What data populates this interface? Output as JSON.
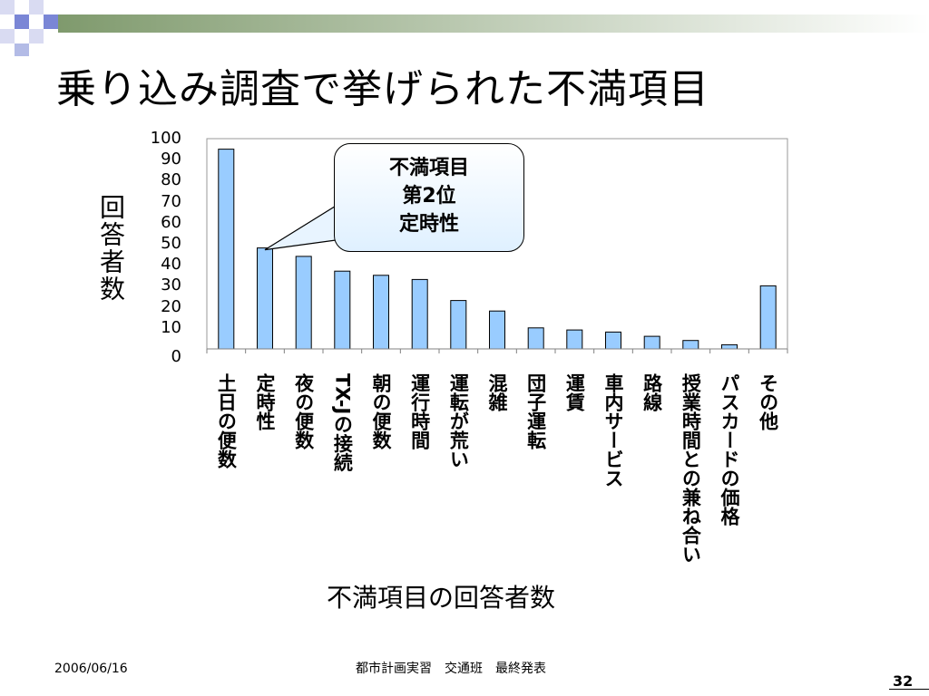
{
  "slide": {
    "title": "乗り込み調査で挙げられた不満項目",
    "ylabel": "回答者数",
    "xaxis_title": "不満項目の回答者数",
    "callout": {
      "line1": "不満項目",
      "line2": "第2位",
      "line3": "定時性"
    },
    "footer": {
      "date": "2006/06/16",
      "center": "都市計画実習　交通班　最終発表",
      "page": "32"
    }
  },
  "colors": {
    "bar_fill": "#99ccff",
    "bar_stroke": "#000000",
    "deco_green": "#7f9a6d",
    "deco_blue": "#7a86d6"
  },
  "chart_data": {
    "type": "bar",
    "categories": [
      "土日の便数",
      "定時性",
      "夜の便数",
      "TX-Jの接続",
      "朝の便数",
      "運行時間",
      "運転が荒い",
      "混雑",
      "団子運転",
      "運賃",
      "車内サービス",
      "路線",
      "授業時間との兼ね合い",
      "パスカードの価格",
      "その他"
    ],
    "values": [
      95,
      48,
      44,
      37,
      35,
      33,
      23,
      18,
      10,
      9,
      8,
      6,
      4,
      2,
      30
    ],
    "yticks": [
      0,
      10,
      20,
      30,
      40,
      50,
      60,
      70,
      80,
      90,
      100
    ],
    "ylim": [
      0,
      100
    ],
    "ylabel": "回答者数",
    "xlabel": "不満項目の回答者数",
    "grid": false,
    "legend": "none"
  }
}
